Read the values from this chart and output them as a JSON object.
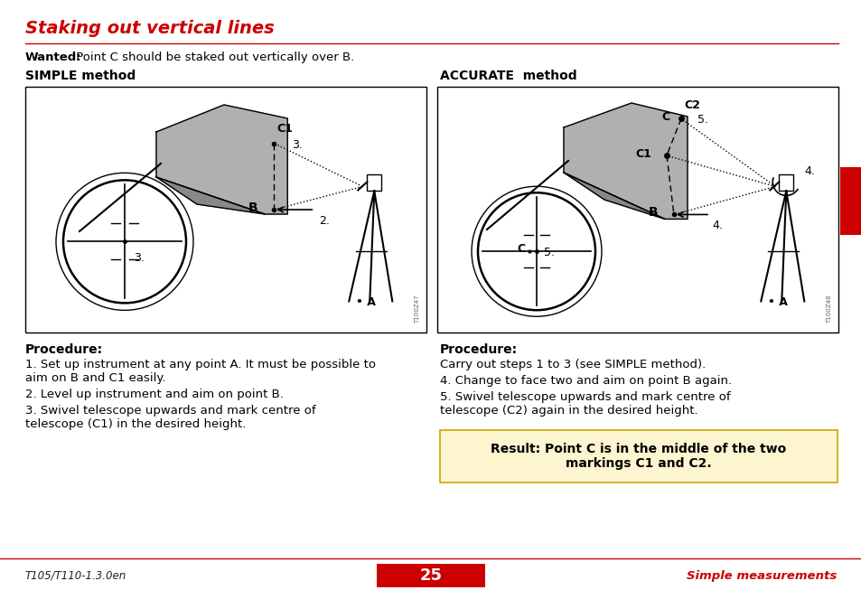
{
  "title": "Staking out vertical lines",
  "title_color": "#cc0000",
  "wanted_bold": "Wanted:",
  "wanted_rest": " Point C should be staked out vertically over B.",
  "simple_method_label": "SIMPLE method",
  "accurate_method_label": "ACCURATE  method",
  "procedure_label": "Procedure:",
  "simple_steps": [
    [
      "1. ",
      "Set up instrument at any point A. It must be possible to\n    aim on B and C1 easily."
    ],
    [
      "2. ",
      "Level up instrument and aim on point B."
    ],
    [
      "3. ",
      "Swivel telescope upwards and mark centre of\n    telescope (C1) in the desired height."
    ]
  ],
  "accurate_intro": "Carry out steps 1 to 3 (see SIMPLE method).",
  "accurate_steps": [
    [
      "4. ",
      "Change to face two and aim on point B again."
    ],
    [
      "5. ",
      "Swivel telescope upwards and mark centre of\n    telescope (C2) again in the desired height."
    ]
  ],
  "result_text": "Result: Point C is in the middle of the two\nmarkings C1 and C2.",
  "result_bg": "#fdf5d0",
  "footer_left": "T105/T110-1.3.0en",
  "footer_center": "25",
  "footer_right": "Simple measurements",
  "footer_color": "#cc0000",
  "footer_bg": "#cc0000",
  "red_tab_color": "#cc0000",
  "bg_color": "#ffffff",
  "page_width": 9.54,
  "page_height": 6.74
}
